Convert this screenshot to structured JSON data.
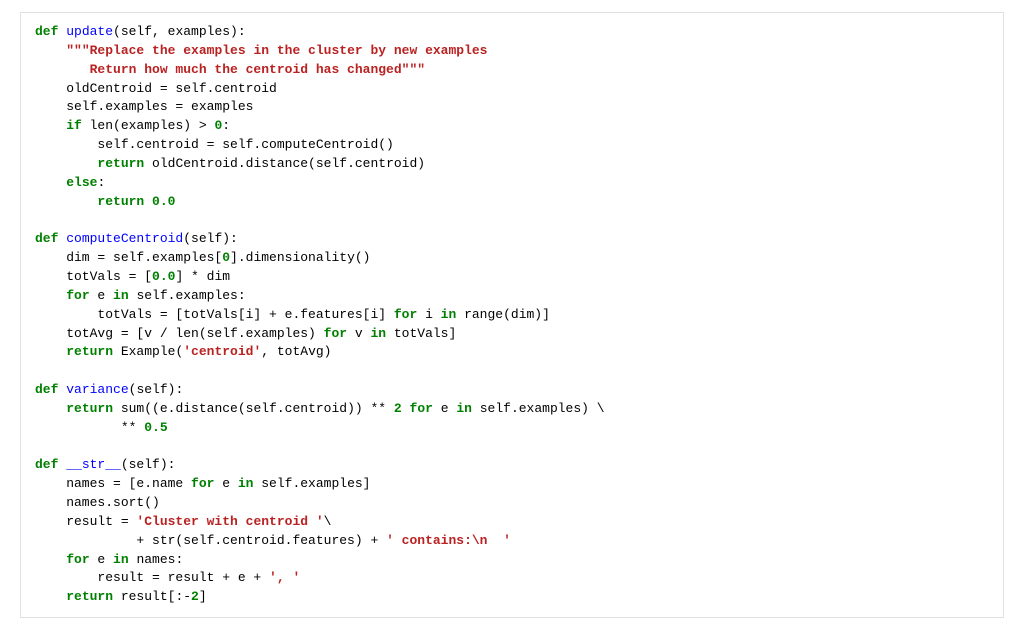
{
  "code": {
    "language": "python",
    "font_family": "Courier New",
    "font_size": 13,
    "colors": {
      "keyword": "#008000",
      "string": "#ba2121",
      "function_name": "#0000ff",
      "text": "#000000",
      "background": "#ffffff",
      "border": "#e0e0e0"
    },
    "tokens": [
      {
        "t": "kw",
        "v": "def "
      },
      {
        "t": "fn",
        "v": "update"
      },
      {
        "t": "",
        "v": "(self, examples):\n"
      },
      {
        "t": "",
        "v": "    "
      },
      {
        "t": "dstr",
        "v": "\"\"\"Replace the examples in the cluster by new examples\n"
      },
      {
        "t": "dstr",
        "v": "       Return how much the centroid has changed\"\"\""
      },
      {
        "t": "",
        "v": "\n"
      },
      {
        "t": "",
        "v": "    oldCentroid = self.centroid\n"
      },
      {
        "t": "",
        "v": "    self.examples = examples\n"
      },
      {
        "t": "",
        "v": "    "
      },
      {
        "t": "kw",
        "v": "if"
      },
      {
        "t": "",
        "v": " len(examples) > "
      },
      {
        "t": "num",
        "v": "0"
      },
      {
        "t": "",
        "v": ":\n"
      },
      {
        "t": "",
        "v": "        self.centroid = self.computeCentroid()\n"
      },
      {
        "t": "",
        "v": "        "
      },
      {
        "t": "kw",
        "v": "return"
      },
      {
        "t": "",
        "v": " oldCentroid.distance(self.centroid)\n"
      },
      {
        "t": "",
        "v": "    "
      },
      {
        "t": "kw",
        "v": "else"
      },
      {
        "t": "",
        "v": ":\n"
      },
      {
        "t": "",
        "v": "        "
      },
      {
        "t": "kw",
        "v": "return"
      },
      {
        "t": "",
        "v": " "
      },
      {
        "t": "num",
        "v": "0.0"
      },
      {
        "t": "",
        "v": "\n"
      },
      {
        "t": "",
        "v": "\n"
      },
      {
        "t": "kw",
        "v": "def "
      },
      {
        "t": "fn",
        "v": "computeCentroid"
      },
      {
        "t": "",
        "v": "(self):\n"
      },
      {
        "t": "",
        "v": "    dim = self.examples["
      },
      {
        "t": "num",
        "v": "0"
      },
      {
        "t": "",
        "v": "].dimensionality()\n"
      },
      {
        "t": "",
        "v": "    totVals = ["
      },
      {
        "t": "num",
        "v": "0.0"
      },
      {
        "t": "",
        "v": "] * dim\n"
      },
      {
        "t": "",
        "v": "    "
      },
      {
        "t": "kw",
        "v": "for"
      },
      {
        "t": "",
        "v": " e "
      },
      {
        "t": "kw",
        "v": "in"
      },
      {
        "t": "",
        "v": " self.examples:\n"
      },
      {
        "t": "",
        "v": "        totVals = [totVals[i] + e.features[i] "
      },
      {
        "t": "kw",
        "v": "for"
      },
      {
        "t": "",
        "v": " i "
      },
      {
        "t": "kw",
        "v": "in"
      },
      {
        "t": "",
        "v": " range(dim)]\n"
      },
      {
        "t": "",
        "v": "    totAvg = [v / len(self.examples) "
      },
      {
        "t": "kw",
        "v": "for"
      },
      {
        "t": "",
        "v": " v "
      },
      {
        "t": "kw",
        "v": "in"
      },
      {
        "t": "",
        "v": " totVals]\n"
      },
      {
        "t": "",
        "v": "    "
      },
      {
        "t": "kw",
        "v": "return"
      },
      {
        "t": "",
        "v": " Example("
      },
      {
        "t": "str",
        "v": "'centroid'"
      },
      {
        "t": "",
        "v": ", totAvg)\n"
      },
      {
        "t": "",
        "v": "\n"
      },
      {
        "t": "kw",
        "v": "def "
      },
      {
        "t": "fn",
        "v": "variance"
      },
      {
        "t": "",
        "v": "(self):\n"
      },
      {
        "t": "",
        "v": "    "
      },
      {
        "t": "kw",
        "v": "return"
      },
      {
        "t": "",
        "v": " sum((e.distance(self.centroid)) ** "
      },
      {
        "t": "num",
        "v": "2"
      },
      {
        "t": "",
        "v": " "
      },
      {
        "t": "kw",
        "v": "for"
      },
      {
        "t": "",
        "v": " e "
      },
      {
        "t": "kw",
        "v": "in"
      },
      {
        "t": "",
        "v": " self.examples) \\\n"
      },
      {
        "t": "",
        "v": "           ** "
      },
      {
        "t": "num",
        "v": "0.5"
      },
      {
        "t": "",
        "v": "\n"
      },
      {
        "t": "",
        "v": "\n"
      },
      {
        "t": "kw",
        "v": "def "
      },
      {
        "t": "fn",
        "v": "__str__"
      },
      {
        "t": "",
        "v": "(self):\n"
      },
      {
        "t": "",
        "v": "    names = [e.name "
      },
      {
        "t": "kw",
        "v": "for"
      },
      {
        "t": "",
        "v": " e "
      },
      {
        "t": "kw",
        "v": "in"
      },
      {
        "t": "",
        "v": " self.examples]\n"
      },
      {
        "t": "",
        "v": "    names.sort()\n"
      },
      {
        "t": "",
        "v": "    result = "
      },
      {
        "t": "str",
        "v": "'Cluster with centroid '"
      },
      {
        "t": "",
        "v": "\\\n"
      },
      {
        "t": "",
        "v": "             + str(self.centroid.features) + "
      },
      {
        "t": "str",
        "v": "' contains:\\n  '"
      },
      {
        "t": "",
        "v": "\n"
      },
      {
        "t": "",
        "v": "    "
      },
      {
        "t": "kw",
        "v": "for"
      },
      {
        "t": "",
        "v": " e "
      },
      {
        "t": "kw",
        "v": "in"
      },
      {
        "t": "",
        "v": " names:\n"
      },
      {
        "t": "",
        "v": "        result = result + e + "
      },
      {
        "t": "str",
        "v": "', '"
      },
      {
        "t": "",
        "v": "\n"
      },
      {
        "t": "",
        "v": "    "
      },
      {
        "t": "kw",
        "v": "return"
      },
      {
        "t": "",
        "v": " result[:-"
      },
      {
        "t": "num",
        "v": "2"
      },
      {
        "t": "",
        "v": "]"
      }
    ]
  }
}
